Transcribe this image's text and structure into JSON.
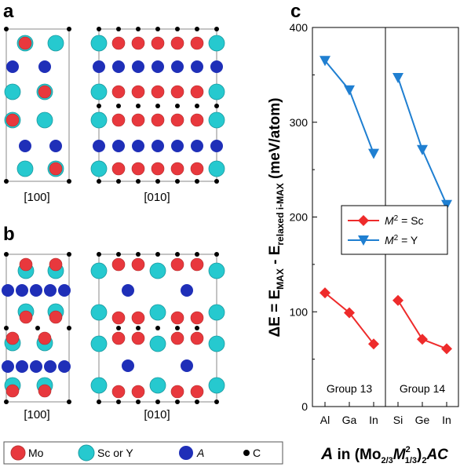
{
  "colors": {
    "Mo": "#e8383d",
    "Sc_or_Y": "#26c9cf",
    "A": "#1f2fb8",
    "C": "#000000",
    "series_sc": "#ee2b2b",
    "series_y": "#1f7fd1"
  },
  "panels": {
    "a": {
      "letter": "a",
      "left_dir": "[100]",
      "right_dir": "[010]"
    },
    "b": {
      "letter": "b",
      "left_dir": "[100]",
      "right_dir": "[010]"
    },
    "c": {
      "letter": "c"
    }
  },
  "atom_legend": [
    {
      "key": "Mo",
      "label": "Mo"
    },
    {
      "key": "Sc_or_Y",
      "label": "Sc or Y"
    },
    {
      "key": "A",
      "label": "A"
    },
    {
      "key": "C",
      "label": "C"
    }
  ],
  "chart_data": {
    "type": "line",
    "ylabel": "ΔE = E_MAX - E_relaxed i-MAX (meV/atom)",
    "ylabel_parts": {
      "main": "ΔE = E",
      "sub1": "MAX",
      "mid": " - E",
      "sub2": "relaxed i-MAX",
      "end": " (meV/atom)"
    },
    "xlabel": "A in (Mo2/3M21/3)2AC",
    "xlabel_parts": {
      "a": "A",
      "in": " in (Mo",
      "s1": "2/3",
      "m": "M",
      "sup": "2",
      "s2": "1/3",
      "close": ")",
      "s3": "2",
      "tail": "AC"
    },
    "ylim": [
      0,
      400
    ],
    "yticks": [
      0,
      100,
      200,
      300,
      400
    ],
    "groups": [
      {
        "label": "Group 13",
        "categories": [
          "Al",
          "Ga",
          "In"
        ]
      },
      {
        "label": "Group 14",
        "categories": [
          "Si",
          "Ge",
          "In"
        ]
      }
    ],
    "series": [
      {
        "name": "M2 = Sc",
        "label_m": "M",
        "label_sup": "2",
        "label_rest": " = Sc",
        "marker": "diamond",
        "group13": [
          120,
          99,
          66
        ],
        "group14": [
          112,
          71,
          61
        ]
      },
      {
        "name": "M2 = Y",
        "label_m": "M",
        "label_sup": "2",
        "label_rest": " = Y",
        "marker": "triangle-down",
        "group13": [
          365,
          334,
          267
        ],
        "group14": [
          347,
          271,
          213
        ]
      }
    ],
    "legend_position": "center-right"
  }
}
